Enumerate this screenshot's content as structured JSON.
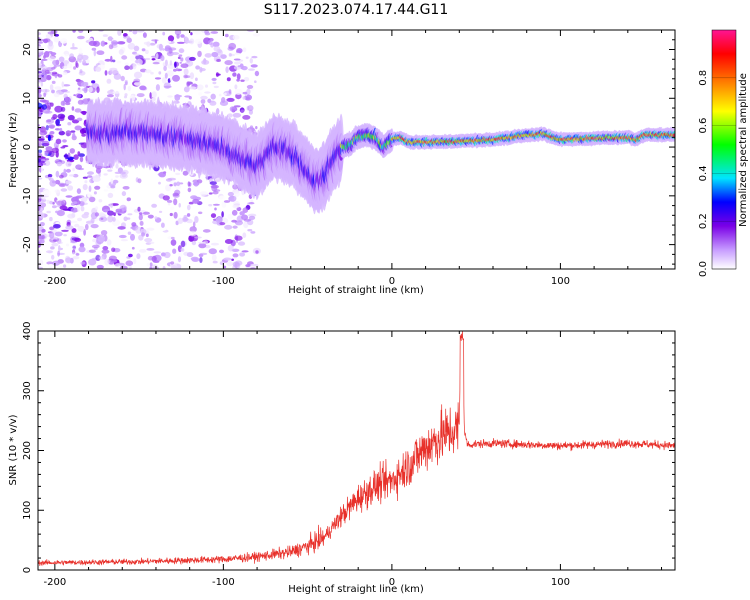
{
  "chart_data": [
    {
      "type": "heatmap",
      "title": "S117.2023.074.17.44.G11",
      "xlabel": "Height of straight line (km)",
      "ylabel": "Frequency (Hz)",
      "xlim": [
        -210,
        168
      ],
      "ylim": [
        -25,
        24
      ],
      "xticks": [
        -200,
        -100,
        0,
        100
      ],
      "yticks": [
        -20,
        -10,
        0,
        10,
        20
      ],
      "colorbar": {
        "label": "Normalized spectral amplitude",
        "range": [
          0,
          1
        ],
        "ticks": [
          0.0,
          0.2,
          0.4,
          0.6,
          0.8
        ],
        "colors": [
          "#ffffff",
          "#c79cff",
          "#7a00e6",
          "#0000ff",
          "#00e5ff",
          "#00ff00",
          "#ffff00",
          "#ff7f00",
          "#ff0000",
          "#ff1493"
        ]
      },
      "ridge": {
        "x": [
          -175,
          -150,
          -125,
          -100,
          -90,
          -80,
          -70,
          -60,
          -50,
          -45,
          -40,
          -35,
          -30,
          -25,
          -20,
          -15,
          -10,
          -5,
          0,
          5,
          10,
          20,
          40,
          60,
          80,
          85,
          90,
          95,
          100,
          120,
          140,
          145,
          150,
          168
        ],
        "y": [
          3,
          3,
          2,
          0,
          -2,
          -4,
          0,
          -1,
          -5,
          -7,
          -6,
          -3,
          0,
          0.5,
          2,
          2.5,
          2,
          0,
          1.5,
          2,
          1,
          1,
          1.2,
          1.5,
          2.5,
          2.5,
          2.8,
          2,
          1.5,
          1.8,
          2,
          1.5,
          2.5,
          2.5
        ]
      }
    },
    {
      "type": "line",
      "xlabel": "Height of straight line (km)",
      "ylabel": "SNR (10 * v/v)",
      "xlim": [
        -210,
        168
      ],
      "ylim": [
        0,
        400
      ],
      "xticks": [
        -200,
        -100,
        0,
        100
      ],
      "yticks": [
        0,
        100,
        200,
        300,
        400
      ],
      "color": "#e8302a",
      "envelope": {
        "x": [
          -210,
          -150,
          -100,
          -80,
          -60,
          -50,
          -40,
          -30,
          -20,
          -10,
          0,
          10,
          20,
          30,
          38,
          40,
          41,
          42,
          43,
          45,
          60,
          80,
          100,
          120,
          140,
          168
        ],
        "y": [
          12,
          14,
          18,
          22,
          30,
          40,
          55,
          90,
          120,
          140,
          150,
          175,
          205,
          225,
          235,
          240,
          395,
          395,
          230,
          210,
          212,
          210,
          208,
          210,
          212,
          208
        ]
      }
    }
  ]
}
